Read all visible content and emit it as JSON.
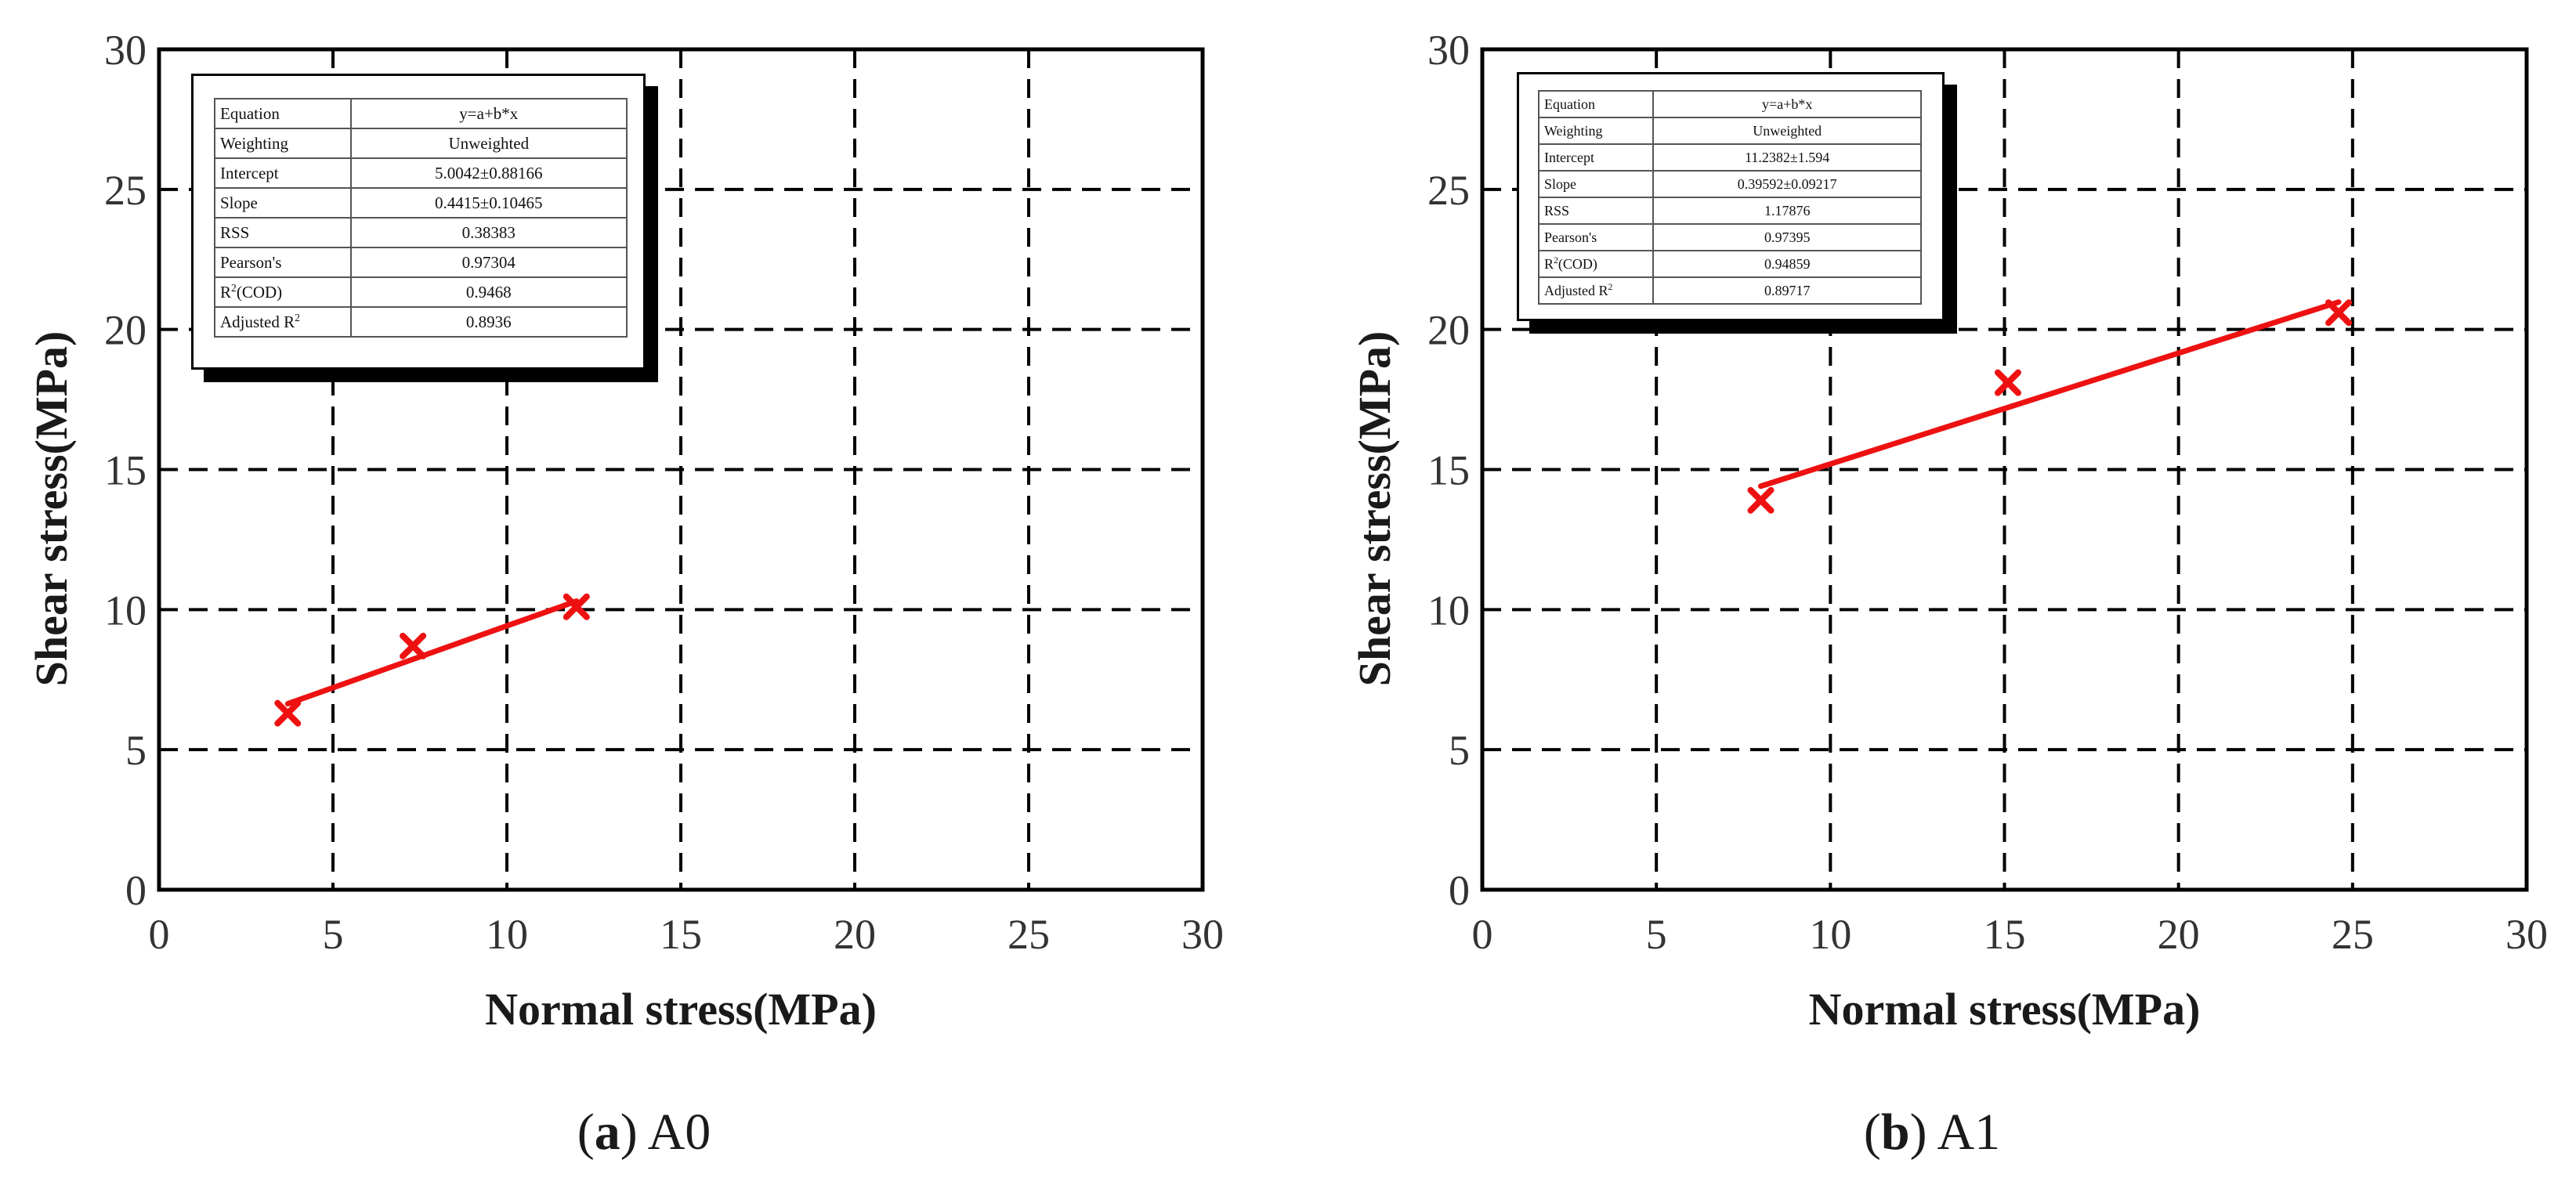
{
  "colors": {
    "fit": "#ee1111",
    "marker": "#ee1111",
    "grid": "#000000",
    "axis": "#000000"
  },
  "chart_data": [
    {
      "type": "scatter",
      "panel_label": "a",
      "caption": "A0",
      "xlabel": "Normal stress(MPa)",
      "ylabel": "Shear stress(MPa)",
      "xlim": [
        0,
        30
      ],
      "ylim": [
        0,
        30
      ],
      "xticks": [
        "0",
        "5",
        "10",
        "15",
        "20",
        "25",
        "30"
      ],
      "yticks": [
        "0",
        "5",
        "10",
        "15",
        "20",
        "25",
        "30"
      ],
      "grid": true,
      "series": [
        {
          "points": [
            {
              "x": 3.7,
              "y": 6.3
            },
            {
              "x": 7.3,
              "y": 8.7
            },
            {
              "x": 12.0,
              "y": 10.1
            }
          ]
        }
      ],
      "fit_line": {
        "intercept": 5.0042,
        "slope": 0.4415,
        "x_range": [
          3.7,
          12.0
        ]
      },
      "stats_table": [
        {
          "label": "Equation",
          "value": "y=a+b*x"
        },
        {
          "label": "Weighting",
          "value": "Unweighted"
        },
        {
          "label": "Intercept",
          "value": "5.0042±0.88166"
        },
        {
          "label": "Slope",
          "value": "0.4415±0.10465"
        },
        {
          "label": "RSS",
          "value": "0.38383"
        },
        {
          "label": "Pearson's",
          "value": "0.97304"
        },
        {
          "label": "R2(COD)",
          "value": "0.9468"
        },
        {
          "label": "Adjusted R2",
          "value": "0.8936"
        }
      ]
    },
    {
      "type": "scatter",
      "panel_label": "b",
      "caption": "A1",
      "xlabel": "Normal stress(MPa)",
      "ylabel": "Shear stress(MPa)",
      "xlim": [
        0,
        30
      ],
      "ylim": [
        0,
        30
      ],
      "xticks": [
        "0",
        "5",
        "10",
        "15",
        "20",
        "25",
        "30"
      ],
      "yticks": [
        "0",
        "5",
        "10",
        "15",
        "20",
        "25",
        "30"
      ],
      "grid": true,
      "series": [
        {
          "points": [
            {
              "x": 8.0,
              "y": 13.9
            },
            {
              "x": 15.1,
              "y": 18.1
            },
            {
              "x": 24.6,
              "y": 20.6
            }
          ]
        }
      ],
      "fit_line": {
        "intercept": 11.2382,
        "slope": 0.39592,
        "x_range": [
          8.0,
          24.6
        ]
      },
      "stats_table": [
        {
          "label": "Equation",
          "value": "y=a+b*x"
        },
        {
          "label": "Weighting",
          "value": "Unweighted"
        },
        {
          "label": "Intercept",
          "value": "11.2382±1.594"
        },
        {
          "label": "Slope",
          "value": "0.39592±0.09217"
        },
        {
          "label": "RSS",
          "value": "1.17876"
        },
        {
          "label": "Pearson's",
          "value": "0.97395"
        },
        {
          "label": "R2(COD)",
          "value": "0.94859"
        },
        {
          "label": "Adjusted R2",
          "value": "0.89717"
        }
      ]
    }
  ]
}
